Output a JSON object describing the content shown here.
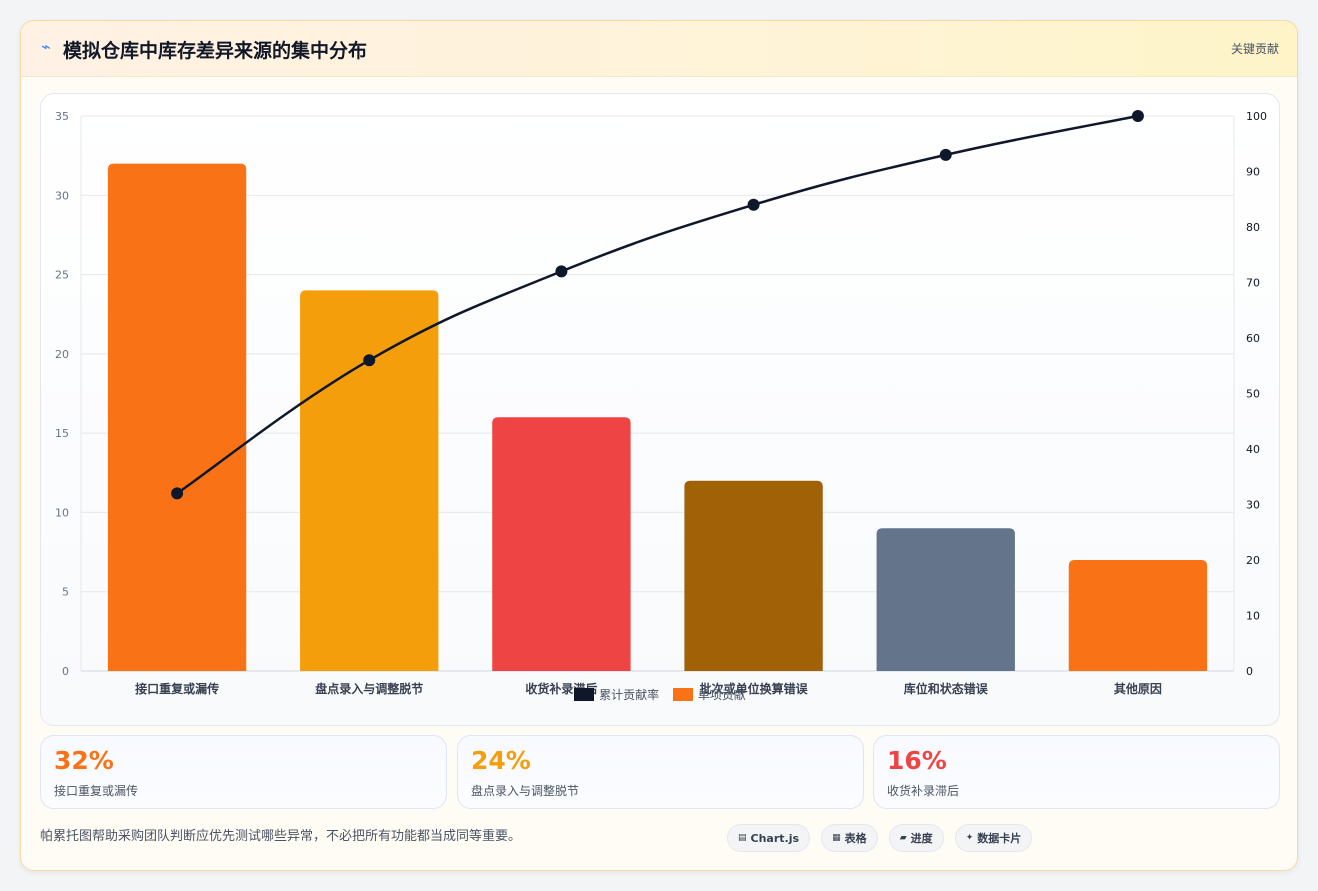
{
  "header": {
    "icon": "lightning-icon",
    "title": "模拟仓库中库存差异来源的集中分布",
    "right_label": "关键贡献"
  },
  "chart_data": {
    "type": "bar",
    "categories": [
      "接口重复或漏传",
      "盘点录入与调整脱节",
      "收货补录滞后",
      "批次或单位换算错误",
      "库位和状态错误",
      "其他原因"
    ],
    "series": [
      {
        "name": "单项贡献",
        "type": "bar",
        "axis": "left",
        "values": [
          32,
          24,
          16,
          12,
          9,
          7
        ],
        "colors": [
          "#f97316",
          "#f59e0b",
          "#ef4444",
          "#a16207",
          "#64748b",
          "#f97316"
        ]
      },
      {
        "name": "累计贡献率",
        "type": "line",
        "axis": "right",
        "values": [
          32,
          56,
          72,
          84,
          93,
          100
        ],
        "color": "#0f172a"
      }
    ],
    "y_left": {
      "min": 0,
      "max": 35,
      "ticks": [
        0,
        5,
        10,
        15,
        20,
        25,
        30,
        35
      ]
    },
    "y_right": {
      "min": 0,
      "max": 100,
      "ticks": [
        0,
        10,
        20,
        30,
        40,
        50,
        60,
        70,
        80,
        90,
        100
      ]
    },
    "legend": {
      "position": "bottom",
      "items": [
        "累计贡献率",
        "单项贡献"
      ]
    },
    "grid": true
  },
  "kpis": [
    {
      "value": "32%",
      "label": "接口重复或漏传",
      "color": "#f97316"
    },
    {
      "value": "24%",
      "label": "盘点录入与调整脱节",
      "color": "#f59e0b"
    },
    {
      "value": "16%",
      "label": "收货补录滞后",
      "color": "#ef4444"
    }
  ],
  "footer": {
    "note": "帕累托图帮助采购团队判断应优先测试哪些异常，不必把所有功能都当成同等重要。",
    "pills": [
      {
        "icon": "bar-chart-icon",
        "label": "Chart.js"
      },
      {
        "icon": "table-icon",
        "label": "表格"
      },
      {
        "icon": "progress-icon",
        "label": "进度"
      },
      {
        "icon": "sparkle-icon",
        "label": "数据卡片"
      }
    ]
  }
}
